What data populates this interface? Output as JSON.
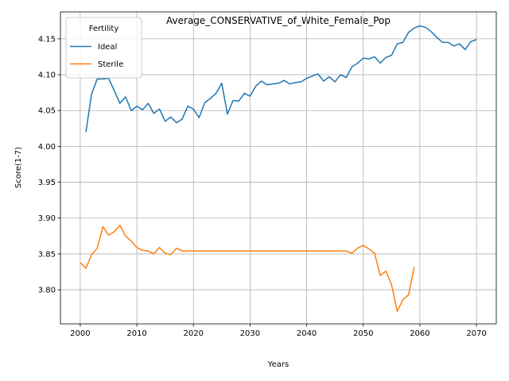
{
  "chart_data": {
    "type": "line",
    "title": "Average_CONSERVATIVE_of_White_Female_Pop",
    "xlabel": "Years",
    "ylabel": "Score(1-7)",
    "xlim": [
      1996.5,
      2073.5
    ],
    "ylim": [
      3.7525,
      4.1875
    ],
    "xticks": [
      2000,
      2010,
      2020,
      2030,
      2040,
      2050,
      2060,
      2070
    ],
    "yticks": [
      3.8,
      3.85,
      3.9,
      3.95,
      4.0,
      4.05,
      4.1,
      4.15
    ],
    "xtick_labels": [
      "2000",
      "2010",
      "2020",
      "2030",
      "2040",
      "2050",
      "2060",
      "2070"
    ],
    "ytick_labels": [
      "3.80",
      "3.85",
      "3.90",
      "3.95",
      "4.00",
      "4.05",
      "4.10",
      "4.15"
    ],
    "grid": true,
    "legend": {
      "title": "Fertility",
      "position": "top-left"
    },
    "series": [
      {
        "name": "Ideal",
        "color": "#1f77b4",
        "x": [
          2001,
          2002,
          2003,
          2004,
          2005,
          2006,
          2007,
          2008,
          2009,
          2010,
          2011,
          2012,
          2013,
          2014,
          2015,
          2016,
          2017,
          2018,
          2019,
          2020,
          2021,
          2022,
          2023,
          2024,
          2025,
          2026,
          2027,
          2028,
          2029,
          2030,
          2031,
          2032,
          2033,
          2034,
          2035,
          2036,
          2037,
          2038,
          2039,
          2040,
          2041,
          2042,
          2043,
          2044,
          2045,
          2046,
          2047,
          2048,
          2049,
          2050,
          2051,
          2052,
          2053,
          2054,
          2055,
          2056,
          2057,
          2058,
          2059,
          2060,
          2061,
          2062,
          2063,
          2064,
          2065,
          2066,
          2067,
          2068,
          2069,
          2070
        ],
        "y": [
          4.02,
          4.073,
          4.094,
          4.094,
          4.095,
          4.078,
          4.06,
          4.069,
          4.05,
          4.056,
          4.051,
          4.06,
          4.046,
          4.052,
          4.035,
          4.041,
          4.033,
          4.038,
          4.056,
          4.052,
          4.04,
          4.061,
          4.067,
          4.074,
          4.088,
          4.045,
          4.064,
          4.063,
          4.074,
          4.07,
          4.084,
          4.091,
          4.086,
          4.087,
          4.088,
          4.092,
          4.087,
          4.089,
          4.09,
          4.095,
          4.098,
          4.101,
          4.091,
          4.097,
          4.09,
          4.1,
          4.096,
          4.111,
          4.116,
          4.123,
          4.122,
          4.125,
          4.116,
          4.124,
          4.127,
          4.143,
          4.145,
          4.159,
          4.165,
          4.168,
          4.166,
          4.16,
          4.152,
          4.145,
          4.145,
          4.14,
          4.143,
          4.135,
          4.146,
          4.149
        ]
      },
      {
        "name": "Sterile",
        "color": "#ff7f0e",
        "x": [
          2000,
          2001,
          2002,
          2003,
          2004,
          2005,
          2006,
          2007,
          2008,
          2009,
          2010,
          2011,
          2012,
          2013,
          2014,
          2015,
          2016,
          2017,
          2018,
          2019,
          2020,
          2021,
          2022,
          2023,
          2024,
          2025,
          2026,
          2027,
          2028,
          2029,
          2030,
          2031,
          2032,
          2033,
          2034,
          2035,
          2036,
          2037,
          2038,
          2039,
          2040,
          2041,
          2042,
          2043,
          2044,
          2045,
          2046,
          2047,
          2048,
          2049,
          2050,
          2051,
          2052,
          2053,
          2054,
          2055,
          2056,
          2057,
          2058,
          2059
        ],
        "y": [
          3.838,
          3.83,
          3.849,
          3.858,
          3.888,
          3.876,
          3.881,
          3.89,
          3.875,
          3.868,
          3.859,
          3.855,
          3.854,
          3.85,
          3.859,
          3.851,
          3.849,
          3.858,
          3.854,
          3.854,
          3.854,
          3.854,
          3.854,
          3.854,
          3.854,
          3.854,
          3.854,
          3.854,
          3.854,
          3.854,
          3.854,
          3.854,
          3.854,
          3.854,
          3.854,
          3.854,
          3.854,
          3.854,
          3.854,
          3.854,
          3.854,
          3.854,
          3.854,
          3.854,
          3.854,
          3.854,
          3.854,
          3.854,
          3.851,
          3.858,
          3.862,
          3.857,
          3.851,
          3.82,
          3.826,
          3.807,
          3.77,
          3.786,
          3.793,
          3.832
        ]
      }
    ]
  }
}
